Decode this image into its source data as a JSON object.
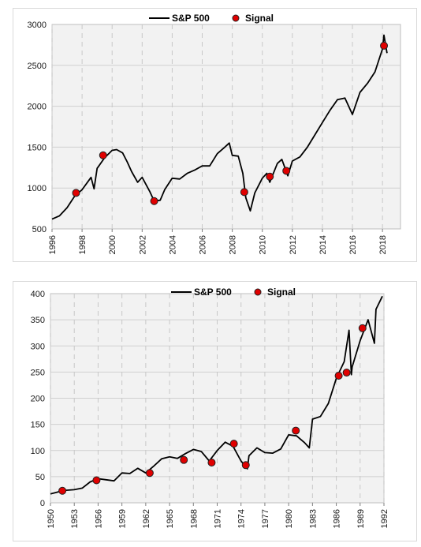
{
  "chart_data": [
    {
      "type": "line",
      "legend": [
        "S&P 500",
        "Signal"
      ],
      "legend_position": "top",
      "grid": true,
      "x_ticks": [
        "1996",
        "1998",
        "2000",
        "2002",
        "2004",
        "2006",
        "2008",
        "2010",
        "2012",
        "2014",
        "2016",
        "2018"
      ],
      "y_ticks": [
        "500",
        "1000",
        "1500",
        "2000",
        "2500",
        "3000"
      ],
      "xlim": [
        1996,
        2019.2
      ],
      "ylim": [
        500,
        3000
      ],
      "series": [
        {
          "name": "S&P 500",
          "x": [
            1996,
            1996.5,
            1997,
            1997.5,
            1998,
            1998.6,
            1998.8,
            1999,
            1999.5,
            2000,
            2000.3,
            2000.7,
            2001,
            2001.3,
            2001.7,
            2002,
            2002.5,
            2002.8,
            2003.2,
            2003.5,
            2004,
            2004.5,
            2005,
            2005.5,
            2006,
            2006.5,
            2007,
            2007.5,
            2007.8,
            2008,
            2008.4,
            2008.7,
            2008.9,
            2009.2,
            2009.5,
            2010,
            2010.3,
            2010.5,
            2011,
            2011.3,
            2011.7,
            2012,
            2012.5,
            2013,
            2013.5,
            2014,
            2014.5,
            2015,
            2015.5,
            2016,
            2016.5,
            2017,
            2017.5,
            2018,
            2018.1,
            2018.3
          ],
          "values": [
            620,
            660,
            760,
            900,
            980,
            1130,
            990,
            1240,
            1370,
            1460,
            1470,
            1430,
            1320,
            1200,
            1070,
            1130,
            960,
            840,
            850,
            980,
            1120,
            1110,
            1180,
            1220,
            1270,
            1270,
            1420,
            1500,
            1550,
            1400,
            1390,
            1180,
            880,
            720,
            940,
            1120,
            1180,
            1070,
            1300,
            1350,
            1150,
            1330,
            1380,
            1500,
            1650,
            1800,
            1950,
            2080,
            2100,
            1900,
            2170,
            2280,
            2420,
            2700,
            2870,
            2650
          ]
        },
        {
          "name": "Signal",
          "x": [
            1997.6,
            1999.4,
            2002.8,
            2008.8,
            2010.5,
            2011.6,
            2018.1
          ],
          "values": [
            940,
            1400,
            840,
            950,
            1140,
            1210,
            2740
          ]
        }
      ]
    },
    {
      "type": "line",
      "legend": [
        "S&P 500",
        "Signal"
      ],
      "legend_position": "top",
      "grid": true,
      "x_ticks": [
        "1950",
        "1953",
        "1956",
        "1959",
        "1962",
        "1965",
        "1968",
        "1971",
        "1974",
        "1977",
        "1980",
        "1983",
        "1986",
        "1989",
        "1992"
      ],
      "y_ticks": [
        "0",
        "50",
        "100",
        "150",
        "200",
        "250",
        "300",
        "350",
        "400"
      ],
      "xlim": [
        1950,
        1992
      ],
      "ylim": [
        0,
        400
      ],
      "series": [
        {
          "name": "S&P 500",
          "x": [
            1950,
            1951,
            1952,
            1953,
            1954,
            1955,
            1956,
            1957,
            1958,
            1959,
            1960,
            1961,
            1962,
            1963,
            1964,
            1965,
            1966,
            1967,
            1968,
            1969,
            1970,
            1971,
            1972,
            1973,
            1974,
            1974.8,
            1975,
            1976,
            1977,
            1978,
            1979,
            1980,
            1981,
            1982,
            1982.6,
            1983,
            1984,
            1985,
            1986,
            1987,
            1987.6,
            1987.9,
            1988,
            1989,
            1990,
            1990.8,
            1991,
            1991.8
          ],
          "values": [
            17,
            21,
            24,
            25,
            28,
            40,
            46,
            44,
            42,
            57,
            56,
            66,
            57,
            70,
            84,
            88,
            85,
            94,
            102,
            98,
            80,
            100,
            116,
            108,
            80,
            65,
            90,
            105,
            96,
            95,
            103,
            130,
            128,
            115,
            105,
            160,
            165,
            190,
            238,
            270,
            330,
            245,
            260,
            310,
            350,
            305,
            370,
            395
          ]
        },
        {
          "name": "Signal",
          "x": [
            1951.5,
            1955.8,
            1962.5,
            1966.8,
            1970.3,
            1973.1,
            1974.6,
            1980.9,
            1986.3,
            1987.3,
            1989.3
          ],
          "values": [
            23,
            43,
            57,
            82,
            77,
            113,
            72,
            138,
            243,
            249,
            334
          ]
        }
      ]
    }
  ]
}
